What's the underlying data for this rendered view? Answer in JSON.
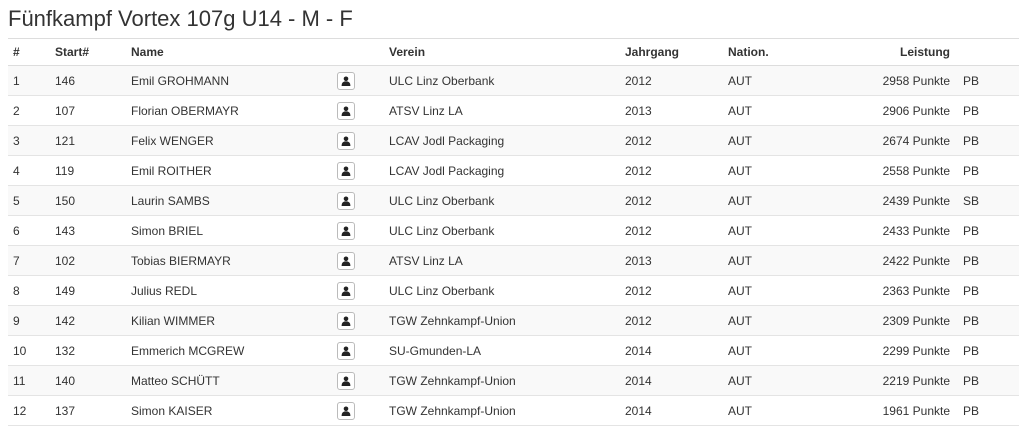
{
  "title": "Fünfkampf Vortex 107g U14 - M - F",
  "columns": {
    "rank": "#",
    "start": "Start#",
    "name": "Name",
    "club": "Verein",
    "year": "Jahrgang",
    "nation": "Nation.",
    "result": "Leistung"
  },
  "icons": {
    "athlete": "user-icon"
  },
  "rows": [
    {
      "rank": "1",
      "start": "146",
      "name": "Emil GROHMANN",
      "club": "ULC Linz Oberbank",
      "year": "2012",
      "nation": "AUT",
      "result": "2958 Punkte",
      "mark": "PB"
    },
    {
      "rank": "2",
      "start": "107",
      "name": "Florian OBERMAYR",
      "club": "ATSV Linz LA",
      "year": "2013",
      "nation": "AUT",
      "result": "2906 Punkte",
      "mark": "PB"
    },
    {
      "rank": "3",
      "start": "121",
      "name": "Felix WENGER",
      "club": "LCAV Jodl Packaging",
      "year": "2012",
      "nation": "AUT",
      "result": "2674 Punkte",
      "mark": "PB"
    },
    {
      "rank": "4",
      "start": "119",
      "name": "Emil ROITHER",
      "club": "LCAV Jodl Packaging",
      "year": "2012",
      "nation": "AUT",
      "result": "2558 Punkte",
      "mark": "PB"
    },
    {
      "rank": "5",
      "start": "150",
      "name": "Laurin SAMBS",
      "club": "ULC Linz Oberbank",
      "year": "2012",
      "nation": "AUT",
      "result": "2439 Punkte",
      "mark": "SB"
    },
    {
      "rank": "6",
      "start": "143",
      "name": "Simon BRIEL",
      "club": "ULC Linz Oberbank",
      "year": "2012",
      "nation": "AUT",
      "result": "2433 Punkte",
      "mark": "PB"
    },
    {
      "rank": "7",
      "start": "102",
      "name": "Tobias BIERMAYR",
      "club": "ATSV Linz LA",
      "year": "2013",
      "nation": "AUT",
      "result": "2422 Punkte",
      "mark": "PB"
    },
    {
      "rank": "8",
      "start": "149",
      "name": "Julius REDL",
      "club": "ULC Linz Oberbank",
      "year": "2012",
      "nation": "AUT",
      "result": "2363 Punkte",
      "mark": "PB"
    },
    {
      "rank": "9",
      "start": "142",
      "name": "Kilian WIMMER",
      "club": "TGW Zehnkampf-Union",
      "year": "2012",
      "nation": "AUT",
      "result": "2309 Punkte",
      "mark": "PB"
    },
    {
      "rank": "10",
      "start": "132",
      "name": "Emmerich MCGREW",
      "club": "SU-Gmunden-LA",
      "year": "2014",
      "nation": "AUT",
      "result": "2299 Punkte",
      "mark": "PB"
    },
    {
      "rank": "11",
      "start": "140",
      "name": "Matteo SCHÜTT",
      "club": "TGW Zehnkampf-Union",
      "year": "2014",
      "nation": "AUT",
      "result": "2219 Punkte",
      "mark": "PB"
    },
    {
      "rank": "12",
      "start": "137",
      "name": "Simon KAISER",
      "club": "TGW Zehnkampf-Union",
      "year": "2014",
      "nation": "AUT",
      "result": "1961 Punkte",
      "mark": "PB"
    }
  ]
}
